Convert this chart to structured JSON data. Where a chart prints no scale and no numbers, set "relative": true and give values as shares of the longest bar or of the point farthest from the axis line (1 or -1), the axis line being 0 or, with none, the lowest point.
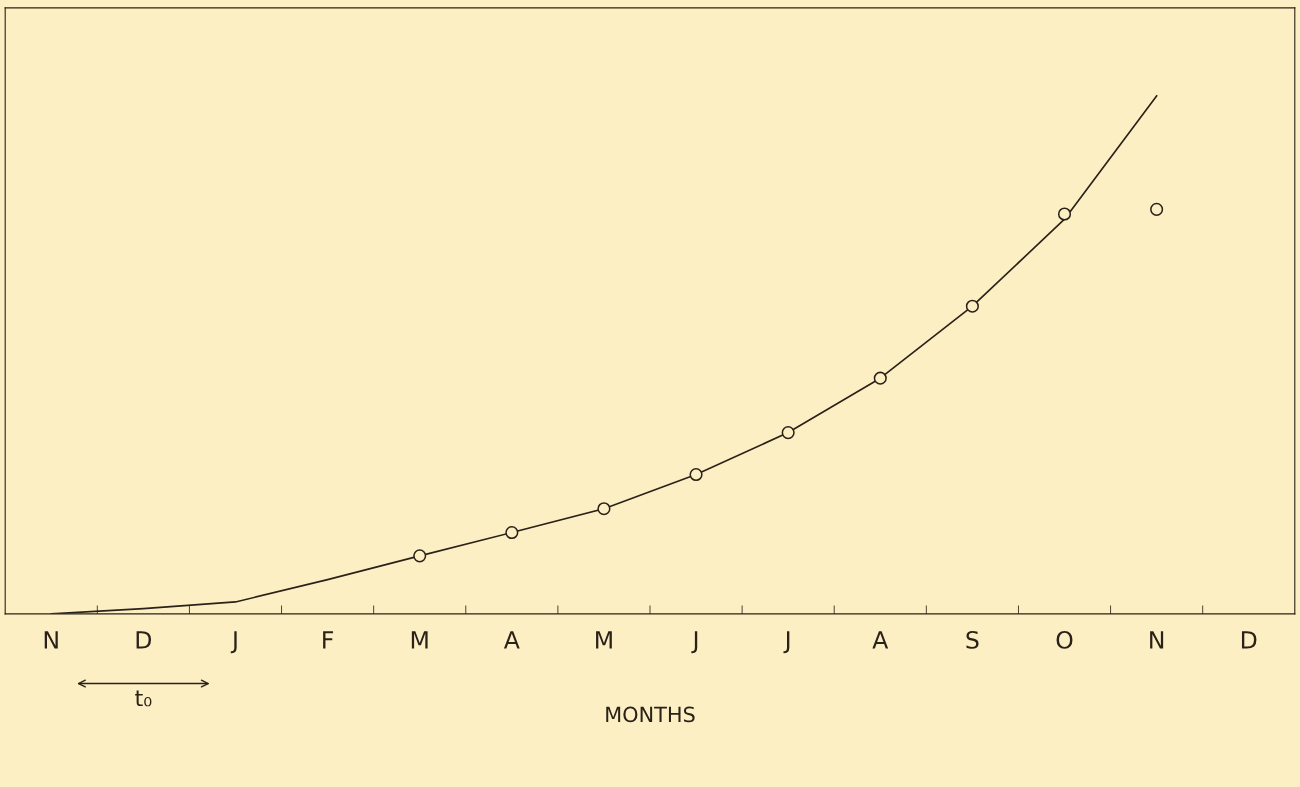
{
  "chart_data": {
    "type": "line",
    "relative": true,
    "xlabel": "MONTHS",
    "categories": [
      "N",
      "D",
      "J",
      "F",
      "M",
      "A",
      "M",
      "J",
      "J",
      "A",
      "S",
      "O",
      "N",
      "D"
    ],
    "series": [
      {
        "color": "#2a2218",
        "marker": "none",
        "values": [
          0,
          0.01,
          0.023,
          0.066,
          0.112,
          0.157,
          0.203,
          0.269,
          0.35,
          0.455,
          0.594,
          0.762,
          1.0,
          null
        ]
      },
      {
        "type": "scatter",
        "color": "#2a2218",
        "marker": "circle",
        "values": [
          null,
          null,
          null,
          null,
          0.112,
          0.157,
          0.203,
          0.269,
          0.35,
          0.455,
          0.594,
          0.772,
          0.781,
          null
        ]
      }
    ],
    "annotations": [
      "t₀"
    ],
    "grid": false,
    "legend": false
  }
}
